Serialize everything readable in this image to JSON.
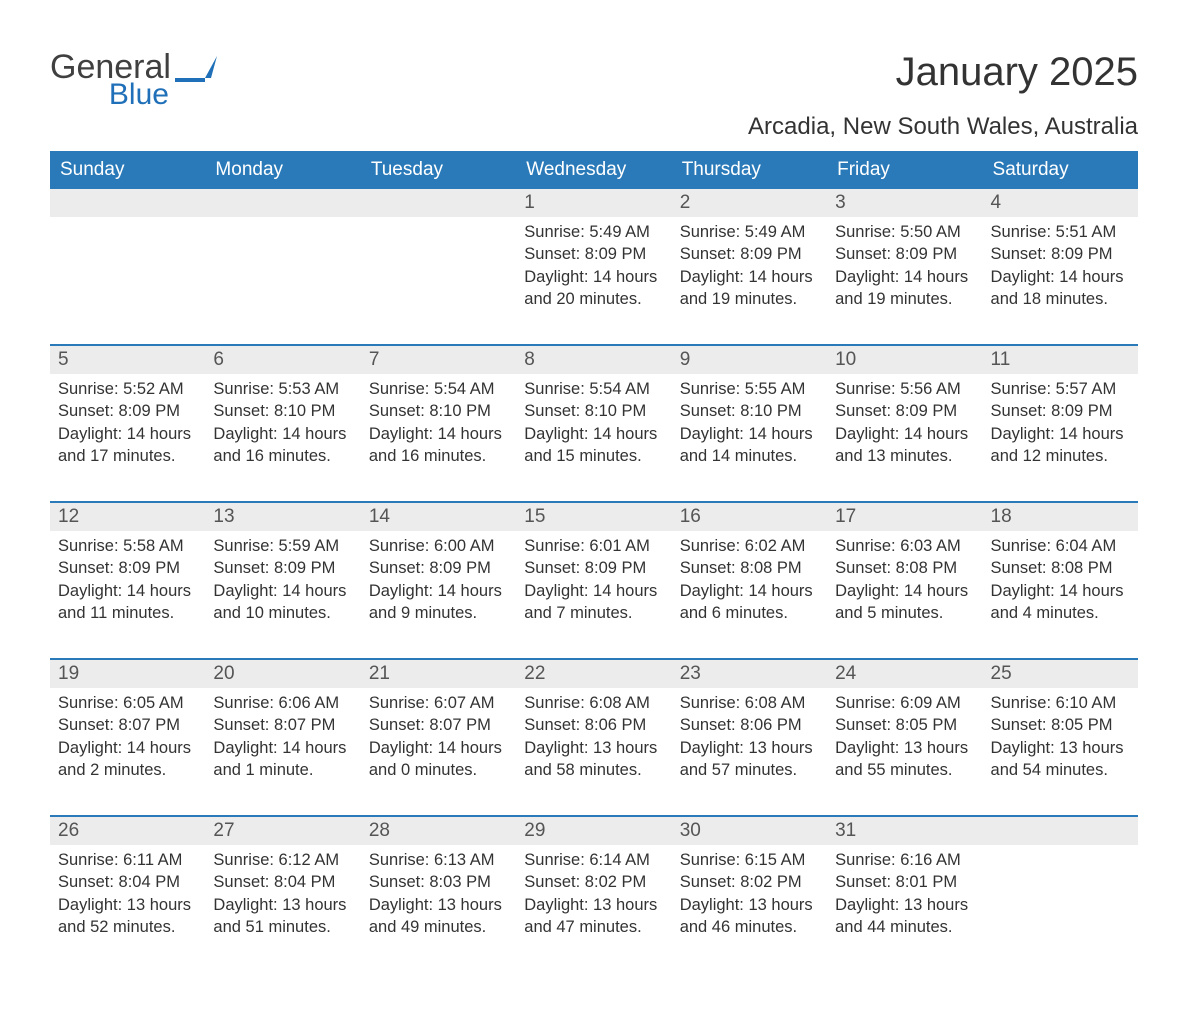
{
  "logo": {
    "text1": "General",
    "text2": "Blue",
    "icon_color": "#1f70b8"
  },
  "title": "January 2025",
  "location": "Arcadia, New South Wales, Australia",
  "colors": {
    "header_bg": "#2a7ab9",
    "header_text": "#ffffff",
    "daynum_bg": "#ececec",
    "row_border": "#2a7ab9",
    "body_text": "#333333"
  },
  "day_headers": [
    "Sunday",
    "Monday",
    "Tuesday",
    "Wednesday",
    "Thursday",
    "Friday",
    "Saturday"
  ],
  "weeks": [
    [
      null,
      null,
      null,
      {
        "n": "1",
        "sunrise": "Sunrise: 5:49 AM",
        "sunset": "Sunset: 8:09 PM",
        "daylight": "Daylight: 14 hours and 20 minutes."
      },
      {
        "n": "2",
        "sunrise": "Sunrise: 5:49 AM",
        "sunset": "Sunset: 8:09 PM",
        "daylight": "Daylight: 14 hours and 19 minutes."
      },
      {
        "n": "3",
        "sunrise": "Sunrise: 5:50 AM",
        "sunset": "Sunset: 8:09 PM",
        "daylight": "Daylight: 14 hours and 19 minutes."
      },
      {
        "n": "4",
        "sunrise": "Sunrise: 5:51 AM",
        "sunset": "Sunset: 8:09 PM",
        "daylight": "Daylight: 14 hours and 18 minutes."
      }
    ],
    [
      {
        "n": "5",
        "sunrise": "Sunrise: 5:52 AM",
        "sunset": "Sunset: 8:09 PM",
        "daylight": "Daylight: 14 hours and 17 minutes."
      },
      {
        "n": "6",
        "sunrise": "Sunrise: 5:53 AM",
        "sunset": "Sunset: 8:10 PM",
        "daylight": "Daylight: 14 hours and 16 minutes."
      },
      {
        "n": "7",
        "sunrise": "Sunrise: 5:54 AM",
        "sunset": "Sunset: 8:10 PM",
        "daylight": "Daylight: 14 hours and 16 minutes."
      },
      {
        "n": "8",
        "sunrise": "Sunrise: 5:54 AM",
        "sunset": "Sunset: 8:10 PM",
        "daylight": "Daylight: 14 hours and 15 minutes."
      },
      {
        "n": "9",
        "sunrise": "Sunrise: 5:55 AM",
        "sunset": "Sunset: 8:10 PM",
        "daylight": "Daylight: 14 hours and 14 minutes."
      },
      {
        "n": "10",
        "sunrise": "Sunrise: 5:56 AM",
        "sunset": "Sunset: 8:09 PM",
        "daylight": "Daylight: 14 hours and 13 minutes."
      },
      {
        "n": "11",
        "sunrise": "Sunrise: 5:57 AM",
        "sunset": "Sunset: 8:09 PM",
        "daylight": "Daylight: 14 hours and 12 minutes."
      }
    ],
    [
      {
        "n": "12",
        "sunrise": "Sunrise: 5:58 AM",
        "sunset": "Sunset: 8:09 PM",
        "daylight": "Daylight: 14 hours and 11 minutes."
      },
      {
        "n": "13",
        "sunrise": "Sunrise: 5:59 AM",
        "sunset": "Sunset: 8:09 PM",
        "daylight": "Daylight: 14 hours and 10 minutes."
      },
      {
        "n": "14",
        "sunrise": "Sunrise: 6:00 AM",
        "sunset": "Sunset: 8:09 PM",
        "daylight": "Daylight: 14 hours and 9 minutes."
      },
      {
        "n": "15",
        "sunrise": "Sunrise: 6:01 AM",
        "sunset": "Sunset: 8:09 PM",
        "daylight": "Daylight: 14 hours and 7 minutes."
      },
      {
        "n": "16",
        "sunrise": "Sunrise: 6:02 AM",
        "sunset": "Sunset: 8:08 PM",
        "daylight": "Daylight: 14 hours and 6 minutes."
      },
      {
        "n": "17",
        "sunrise": "Sunrise: 6:03 AM",
        "sunset": "Sunset: 8:08 PM",
        "daylight": "Daylight: 14 hours and 5 minutes."
      },
      {
        "n": "18",
        "sunrise": "Sunrise: 6:04 AM",
        "sunset": "Sunset: 8:08 PM",
        "daylight": "Daylight: 14 hours and 4 minutes."
      }
    ],
    [
      {
        "n": "19",
        "sunrise": "Sunrise: 6:05 AM",
        "sunset": "Sunset: 8:07 PM",
        "daylight": "Daylight: 14 hours and 2 minutes."
      },
      {
        "n": "20",
        "sunrise": "Sunrise: 6:06 AM",
        "sunset": "Sunset: 8:07 PM",
        "daylight": "Daylight: 14 hours and 1 minute."
      },
      {
        "n": "21",
        "sunrise": "Sunrise: 6:07 AM",
        "sunset": "Sunset: 8:07 PM",
        "daylight": "Daylight: 14 hours and 0 minutes."
      },
      {
        "n": "22",
        "sunrise": "Sunrise: 6:08 AM",
        "sunset": "Sunset: 8:06 PM",
        "daylight": "Daylight: 13 hours and 58 minutes."
      },
      {
        "n": "23",
        "sunrise": "Sunrise: 6:08 AM",
        "sunset": "Sunset: 8:06 PM",
        "daylight": "Daylight: 13 hours and 57 minutes."
      },
      {
        "n": "24",
        "sunrise": "Sunrise: 6:09 AM",
        "sunset": "Sunset: 8:05 PM",
        "daylight": "Daylight: 13 hours and 55 minutes."
      },
      {
        "n": "25",
        "sunrise": "Sunrise: 6:10 AM",
        "sunset": "Sunset: 8:05 PM",
        "daylight": "Daylight: 13 hours and 54 minutes."
      }
    ],
    [
      {
        "n": "26",
        "sunrise": "Sunrise: 6:11 AM",
        "sunset": "Sunset: 8:04 PM",
        "daylight": "Daylight: 13 hours and 52 minutes."
      },
      {
        "n": "27",
        "sunrise": "Sunrise: 6:12 AM",
        "sunset": "Sunset: 8:04 PM",
        "daylight": "Daylight: 13 hours and 51 minutes."
      },
      {
        "n": "28",
        "sunrise": "Sunrise: 6:13 AM",
        "sunset": "Sunset: 8:03 PM",
        "daylight": "Daylight: 13 hours and 49 minutes."
      },
      {
        "n": "29",
        "sunrise": "Sunrise: 6:14 AM",
        "sunset": "Sunset: 8:02 PM",
        "daylight": "Daylight: 13 hours and 47 minutes."
      },
      {
        "n": "30",
        "sunrise": "Sunrise: 6:15 AM",
        "sunset": "Sunset: 8:02 PM",
        "daylight": "Daylight: 13 hours and 46 minutes."
      },
      {
        "n": "31",
        "sunrise": "Sunrise: 6:16 AM",
        "sunset": "Sunset: 8:01 PM",
        "daylight": "Daylight: 13 hours and 44 minutes."
      },
      null
    ]
  ]
}
